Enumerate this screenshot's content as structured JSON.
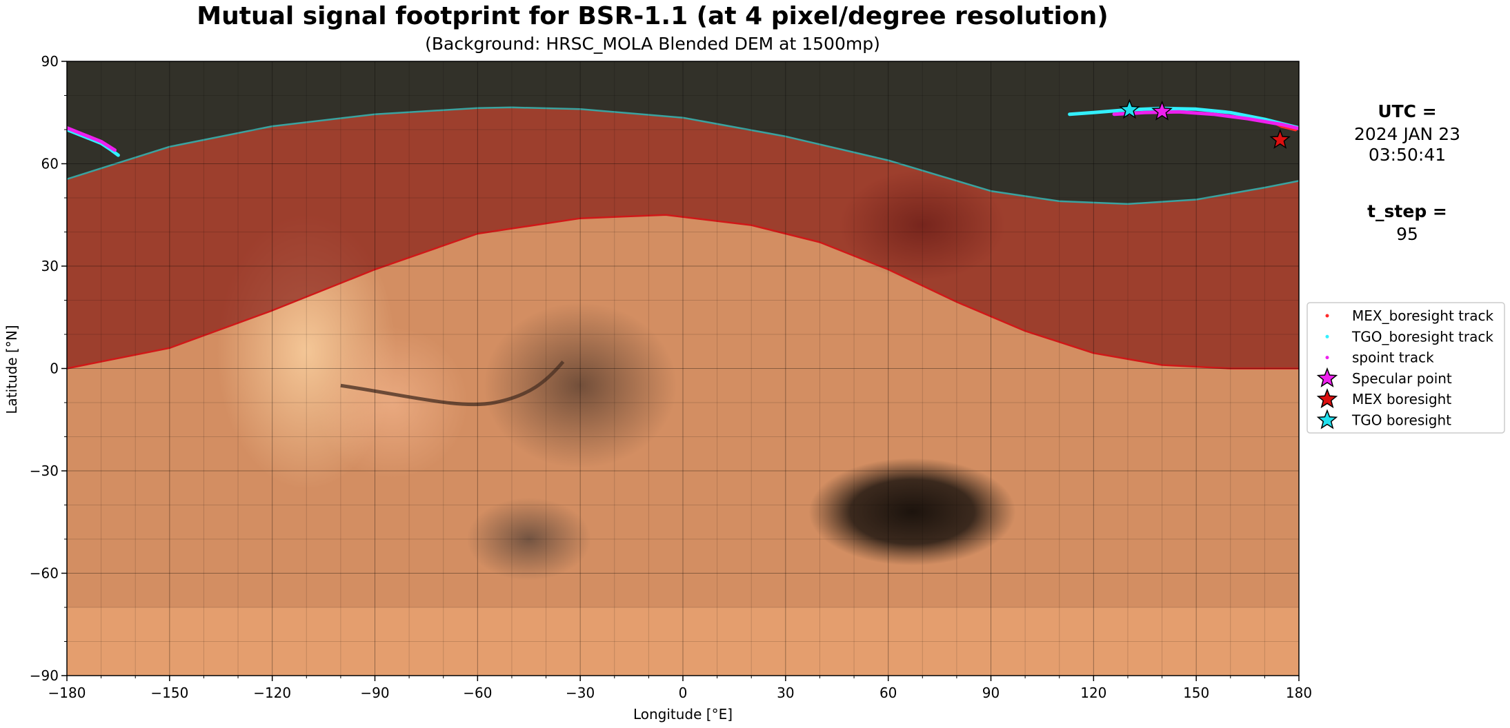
{
  "chart_data": {
    "type": "scatter",
    "title": "Mutual signal footprint for BSR-1.1 (at 4 pixel/degree resolution)",
    "subtitle": "(Background: HRSC_MOLA Blended DEM at 1500mp)",
    "xlabel": "Longitude [°E]",
    "ylabel": "Latitude [°N]",
    "xlim": [
      -180,
      180
    ],
    "ylim": [
      -90,
      90
    ],
    "xticks": [
      -180,
      -150,
      -120,
      -90,
      -60,
      -30,
      0,
      30,
      60,
      90,
      120,
      150,
      180
    ],
    "yticks": [
      -90,
      -60,
      -30,
      0,
      30,
      60,
      90
    ],
    "xtick_labels": [
      "−180",
      "−150",
      "−120",
      "−90",
      "−60",
      "−30",
      "0",
      "30",
      "60",
      "90",
      "120",
      "150",
      "180"
    ],
    "ytick_labels": [
      "−90",
      "−60",
      "−30",
      "0",
      "30",
      "60",
      "90"
    ],
    "grid": true,
    "background": "Mars elevation map",
    "footprint_boundaries": [
      {
        "color": "#d01818",
        "points": [
          [
            -180,
            0
          ],
          [
            -150,
            6
          ],
          [
            -120,
            17
          ],
          [
            -90,
            29
          ],
          [
            -60,
            39.5
          ],
          [
            -30,
            44
          ],
          [
            -5,
            45
          ],
          [
            20,
            42
          ],
          [
            40,
            37
          ],
          [
            60,
            29
          ],
          [
            80,
            19.5
          ],
          [
            100,
            11
          ],
          [
            120,
            4.5
          ],
          [
            140,
            1
          ],
          [
            160,
            0
          ],
          [
            180,
            0
          ]
        ]
      },
      {
        "color": "#3aa3a0",
        "points": [
          [
            -180,
            55.5
          ],
          [
            -150,
            65
          ],
          [
            -120,
            71
          ],
          [
            -90,
            74.5
          ],
          [
            -60,
            76.3
          ],
          [
            -50,
            76.5
          ],
          [
            -30,
            76
          ],
          [
            0,
            73.5
          ],
          [
            30,
            68
          ],
          [
            60,
            61
          ],
          [
            90,
            52
          ],
          [
            110,
            49
          ],
          [
            130,
            48.2
          ],
          [
            150,
            49.5
          ],
          [
            170,
            53
          ],
          [
            180,
            55
          ]
        ]
      }
    ],
    "footprint_fill_color": "#7a0a0a",
    "series": [
      {
        "name": "MEX_boresight track",
        "color": "#ff2a2a",
        "marker": "dot",
        "segments": [
          [
            [
              173,
              72
            ],
            [
              175,
              71
            ],
            [
              177,
              70.5
            ],
            [
              179,
              70
            ]
          ]
        ]
      },
      {
        "name": "TGO_boresight track",
        "color": "#33f0ff",
        "marker": "dot",
        "segments": [
          [
            [
              -180,
              70
            ],
            [
              -175,
              68
            ],
            [
              -170,
              66
            ],
            [
              -167,
              64
            ],
            [
              -165,
              62.5
            ]
          ],
          [
            [
              113,
              74.5
            ],
            [
              120,
              75
            ],
            [
              130,
              75.8
            ],
            [
              140,
              76.2
            ],
            [
              150,
              76
            ],
            [
              160,
              75
            ],
            [
              170,
              73
            ],
            [
              180,
              70.5
            ]
          ]
        ]
      },
      {
        "name": "spoint track",
        "color": "#ee20ee",
        "marker": "dot",
        "segments": [
          [
            [
              -180,
              70.5
            ],
            [
              -175,
              68.5
            ],
            [
              -170,
              66.5
            ],
            [
              -166,
              64
            ]
          ],
          [
            [
              126,
              74.5
            ],
            [
              135,
              75
            ],
            [
              145,
              75.2
            ],
            [
              155,
              74.5
            ],
            [
              165,
              73.2
            ],
            [
              175,
              71.5
            ],
            [
              180,
              70.3
            ]
          ]
        ]
      }
    ],
    "markers": [
      {
        "name": "Specular point",
        "color": "#ee20ee",
        "x": 140,
        "y": 75.3
      },
      {
        "name": "MEX boresight",
        "color": "#dd1010",
        "x": 174.5,
        "y": 67
      },
      {
        "name": "TGO boresight",
        "color": "#22e0ee",
        "x": 130.5,
        "y": 75.8
      }
    ],
    "legend_position": "right",
    "legend_entries": [
      {
        "label": "MEX_boresight track",
        "color": "#ff2a2a",
        "type": "dot"
      },
      {
        "label": "TGO_boresight track",
        "color": "#33f0ff",
        "type": "dot"
      },
      {
        "label": "spoint track",
        "color": "#ee20ee",
        "type": "dot"
      },
      {
        "label": "Specular point",
        "color": "#ee20ee",
        "type": "star"
      },
      {
        "label": "MEX boresight",
        "color": "#dd1010",
        "type": "star"
      },
      {
        "label": "TGO boresight",
        "color": "#22e0ee",
        "type": "star"
      }
    ]
  },
  "info": {
    "utc_label": "UTC =",
    "utc_date": "2024 JAN 23",
    "utc_time": "03:50:41",
    "tstep_label": "t_step =",
    "tstep_value": "95"
  }
}
